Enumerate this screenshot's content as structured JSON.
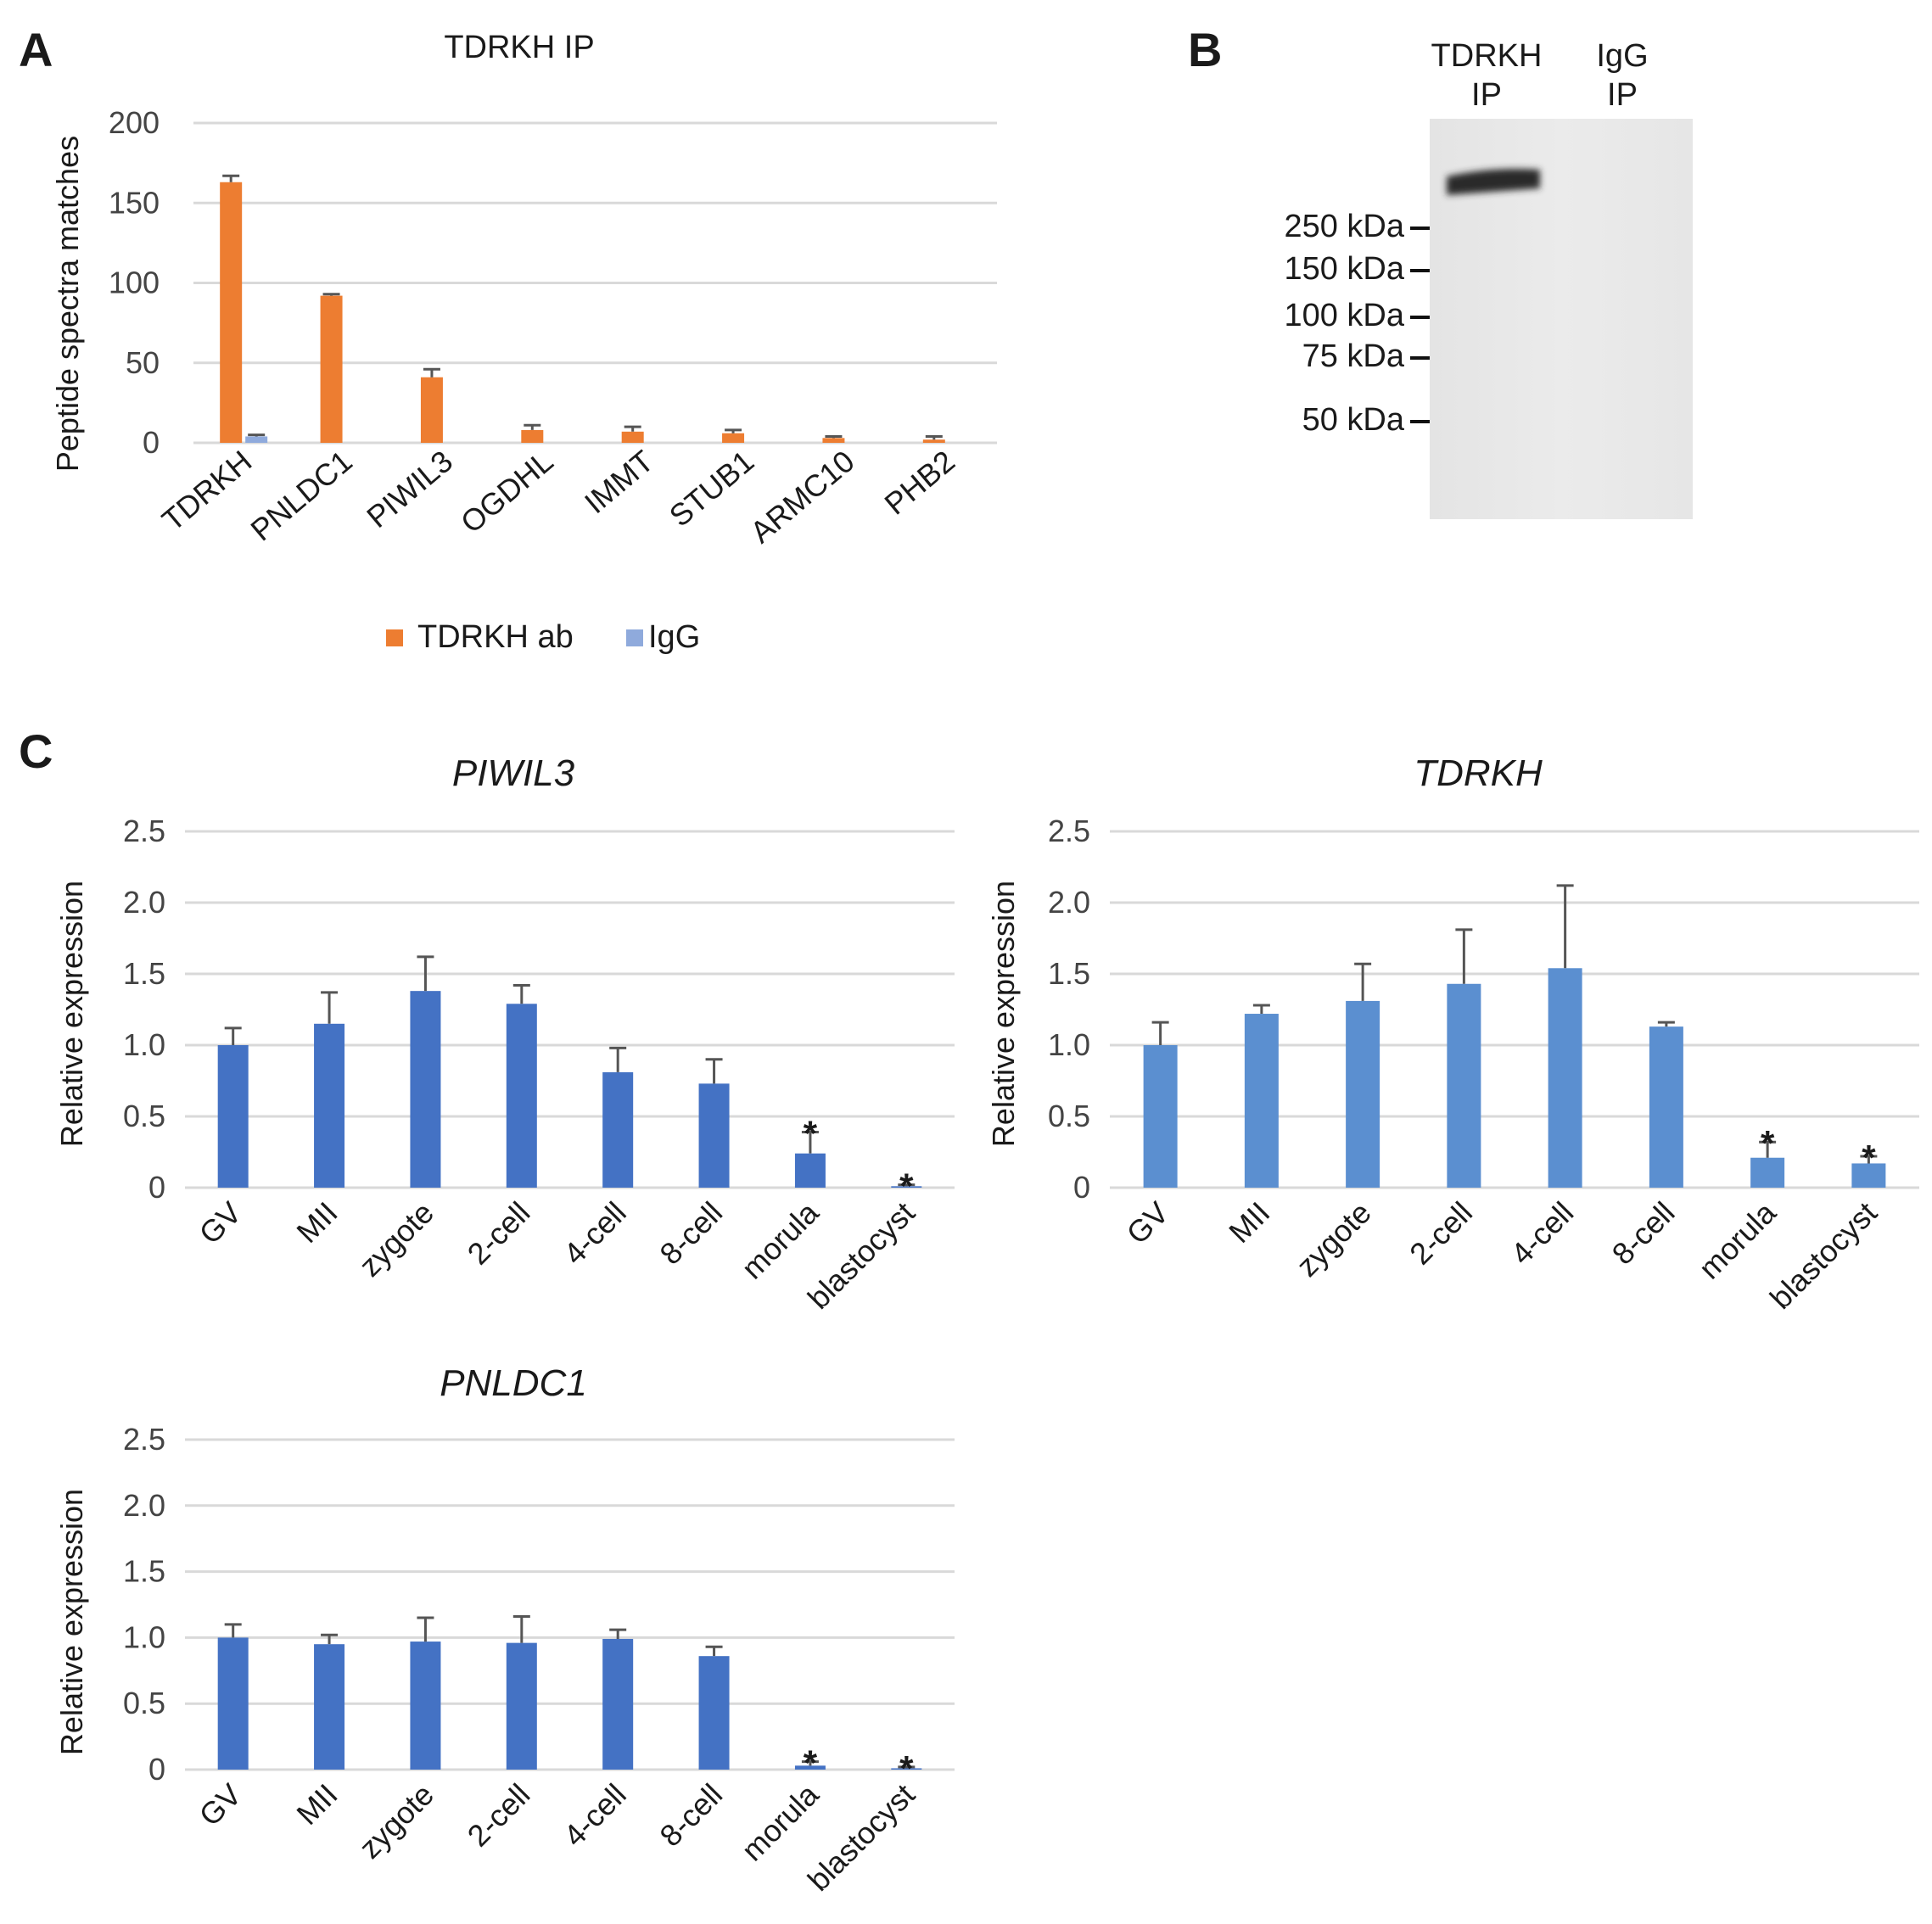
{
  "chart_data": [
    {
      "id": "A",
      "panel_label": "A",
      "type": "bar",
      "title": "TDRKH IP",
      "ylabel": "Peptide spectra matches",
      "ylim": [
        0,
        200
      ],
      "yticks": [
        "0",
        "50",
        "100",
        "150",
        "200"
      ],
      "categories": [
        "TDRKH",
        "PNLDC1",
        "PIWIL3",
        "OGDHL",
        "IMMT",
        "STUB1",
        "ARMC10",
        "PHB2"
      ],
      "series": [
        {
          "name": "TDRKH ab",
          "color": "#ed7d31",
          "values": [
            163,
            92,
            41,
            8,
            7,
            6,
            3,
            2
          ],
          "errors": [
            4,
            1,
            5,
            3,
            3,
            2,
            1,
            2
          ]
        },
        {
          "name": "IgG",
          "color": "#8faadc",
          "values": [
            4,
            0,
            0,
            0,
            0,
            0,
            0,
            0
          ],
          "errors": [
            1,
            0,
            0,
            0,
            0,
            0,
            0,
            0
          ]
        }
      ],
      "legend": "bottom"
    },
    {
      "id": "C1",
      "panel_label": "C",
      "type": "bar",
      "title": "PIWIL3",
      "ylabel": "Relative expression",
      "ylim": [
        0,
        2.5
      ],
      "yticks": [
        "0",
        "0.5",
        "1.0",
        "1.5",
        "2.0",
        "2.5"
      ],
      "categories": [
        "GV",
        "MII",
        "zygote",
        "2-cell",
        "4-cell",
        "8-cell",
        "morula",
        "blastocyst"
      ],
      "series": [
        {
          "name": "PIWIL3",
          "color": "#4472c4",
          "values": [
            1.0,
            1.15,
            1.38,
            1.29,
            0.81,
            0.73,
            0.24,
            0.01
          ],
          "errors": [
            0.12,
            0.22,
            0.24,
            0.13,
            0.17,
            0.17,
            0.15,
            0.01
          ]
        }
      ],
      "significance": [
        "",
        "",
        "",
        "",
        "",
        "",
        "*",
        "*"
      ]
    },
    {
      "id": "C2",
      "panel_label": "",
      "type": "bar",
      "title": "TDRKH",
      "ylabel": "Relative expression",
      "ylim": [
        0,
        2.5
      ],
      "yticks": [
        "0",
        "0.5",
        "1.0",
        "1.5",
        "2.0",
        "2.5"
      ],
      "categories": [
        "GV",
        "MII",
        "zygote",
        "2-cell",
        "4-cell",
        "8-cell",
        "morula",
        "blastocyst"
      ],
      "series": [
        {
          "name": "TDRKH",
          "color": "#5b8fd0",
          "values": [
            1.0,
            1.22,
            1.31,
            1.43,
            1.54,
            1.13,
            0.21,
            0.17
          ],
          "errors": [
            0.16,
            0.06,
            0.26,
            0.38,
            0.58,
            0.03,
            0.11,
            0.05
          ]
        }
      ],
      "significance": [
        "",
        "",
        "",
        "",
        "",
        "",
        "*",
        "*"
      ]
    },
    {
      "id": "C3",
      "panel_label": "",
      "type": "bar",
      "title": "PNLDC1",
      "ylabel": "Relative expression",
      "ylim": [
        0,
        2.5
      ],
      "yticks": [
        "0",
        "0.5",
        "1.0",
        "1.5",
        "2.0",
        "2.5"
      ],
      "categories": [
        "GV",
        "MII",
        "zygote",
        "2-cell",
        "4-cell",
        "8-cell",
        "morula",
        "blastocyst"
      ],
      "series": [
        {
          "name": "PNLDC1",
          "color": "#4472c4",
          "values": [
            1.0,
            0.95,
            0.97,
            0.96,
            0.99,
            0.86,
            0.03,
            0.01
          ],
          "errors": [
            0.1,
            0.07,
            0.18,
            0.2,
            0.07,
            0.07,
            0.03,
            0.01
          ]
        }
      ],
      "significance": [
        "",
        "",
        "",
        "",
        "",
        "",
        "*",
        "*"
      ]
    }
  ],
  "blot": {
    "panel_label": "B",
    "lanes": [
      {
        "line1": "TDRKH",
        "line2": "IP"
      },
      {
        "line1": "IgG",
        "line2": "IP"
      }
    ],
    "markers": [
      "250 kDa",
      "150 kDa",
      "100 kDa",
      "75 kDa",
      "50 kDa"
    ]
  }
}
